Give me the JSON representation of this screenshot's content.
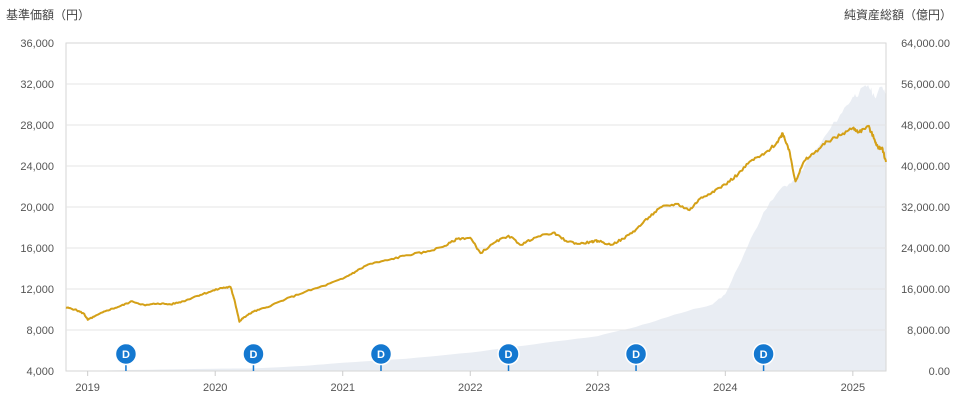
{
  "chart_data": {
    "type": "line",
    "left_axis_title": "基準価額（円）",
    "right_axis_title": "純資産総額（億円）",
    "left_ticks": [
      "4,000",
      "8,000",
      "12,000",
      "16,000",
      "20,000",
      "24,000",
      "28,000",
      "32,000",
      "36,000"
    ],
    "left_ylim": [
      4000,
      36000
    ],
    "right_ticks": [
      "0.00",
      "8,000.00",
      "16,000.00",
      "24,000.00",
      "32,000.00",
      "40,000.00",
      "48,000.00",
      "56,000.00",
      "64,000.00"
    ],
    "right_ylim": [
      0,
      64000
    ],
    "x_ticks": [
      "2019",
      "2020",
      "2021",
      "2022",
      "2023",
      "2024",
      "2025"
    ],
    "xlim": [
      2018.83,
      2025.26
    ],
    "grid": true,
    "series": [
      {
        "role": "nav",
        "color": "#d4a017",
        "axis": "left",
        "points": [
          [
            2018.83,
            10200
          ],
          [
            2018.9,
            10000
          ],
          [
            2018.97,
            9600
          ],
          [
            2019.0,
            9000
          ],
          [
            2019.05,
            9300
          ],
          [
            2019.15,
            9900
          ],
          [
            2019.25,
            10300
          ],
          [
            2019.35,
            10800
          ],
          [
            2019.45,
            10400
          ],
          [
            2019.55,
            10600
          ],
          [
            2019.65,
            10500
          ],
          [
            2019.75,
            10800
          ],
          [
            2019.85,
            11300
          ],
          [
            2019.95,
            11700
          ],
          [
            2020.05,
            12100
          ],
          [
            2020.12,
            12200
          ],
          [
            2020.15,
            11000
          ],
          [
            2020.19,
            8800
          ],
          [
            2020.22,
            9200
          ],
          [
            2020.3,
            9800
          ],
          [
            2020.4,
            10200
          ],
          [
            2020.55,
            11000
          ],
          [
            2020.7,
            11700
          ],
          [
            2020.85,
            12300
          ],
          [
            2021.0,
            13000
          ],
          [
            2021.1,
            13700
          ],
          [
            2021.2,
            14400
          ],
          [
            2021.35,
            14800
          ],
          [
            2021.5,
            15300
          ],
          [
            2021.65,
            15600
          ],
          [
            2021.8,
            16200
          ],
          [
            2021.9,
            16900
          ],
          [
            2022.0,
            17000
          ],
          [
            2022.08,
            15500
          ],
          [
            2022.2,
            16600
          ],
          [
            2022.3,
            17200
          ],
          [
            2022.4,
            16300
          ],
          [
            2022.5,
            17000
          ],
          [
            2022.65,
            17500
          ],
          [
            2022.75,
            16700
          ],
          [
            2022.85,
            16400
          ],
          [
            2022.95,
            16600
          ],
          [
            2023.0,
            16700
          ],
          [
            2023.1,
            16300
          ],
          [
            2023.2,
            16900
          ],
          [
            2023.3,
            17800
          ],
          [
            2023.4,
            19000
          ],
          [
            2023.5,
            20000
          ],
          [
            2023.62,
            20300
          ],
          [
            2023.72,
            19700
          ],
          [
            2023.8,
            20800
          ],
          [
            2023.9,
            21500
          ],
          [
            2024.0,
            22200
          ],
          [
            2024.1,
            23200
          ],
          [
            2024.2,
            24500
          ],
          [
            2024.3,
            25100
          ],
          [
            2024.4,
            26200
          ],
          [
            2024.45,
            27200
          ],
          [
            2024.5,
            25600
          ],
          [
            2024.55,
            22500
          ],
          [
            2024.62,
            24500
          ],
          [
            2024.7,
            25300
          ],
          [
            2024.8,
            26400
          ],
          [
            2024.9,
            27000
          ],
          [
            2025.0,
            27700
          ],
          [
            2025.05,
            27300
          ],
          [
            2025.12,
            27900
          ],
          [
            2025.17,
            26600
          ],
          [
            2025.2,
            25700
          ],
          [
            2025.23,
            25800
          ],
          [
            2025.26,
            24400
          ]
        ]
      },
      {
        "role": "total_net_assets",
        "color": "#e9edf3",
        "axis": "right",
        "points": [
          [
            2018.83,
            0
          ],
          [
            2019.5,
            250
          ],
          [
            2020.0,
            450
          ],
          [
            2020.3,
            500
          ],
          [
            2020.7,
            1000
          ],
          [
            2021.0,
            1600
          ],
          [
            2021.5,
            2400
          ],
          [
            2022.0,
            3600
          ],
          [
            2022.5,
            5200
          ],
          [
            2023.0,
            6800
          ],
          [
            2023.3,
            8600
          ],
          [
            2023.6,
            11000
          ],
          [
            2023.9,
            13000
          ],
          [
            2024.0,
            15000
          ],
          [
            2024.15,
            23000
          ],
          [
            2024.3,
            31000
          ],
          [
            2024.45,
            36000
          ],
          [
            2024.55,
            37000
          ],
          [
            2024.62,
            40000
          ],
          [
            2024.75,
            44500
          ],
          [
            2024.9,
            50000
          ],
          [
            2025.0,
            53500
          ],
          [
            2025.05,
            54300
          ],
          [
            2025.12,
            55800
          ],
          [
            2025.17,
            53500
          ],
          [
            2025.23,
            55500
          ],
          [
            2025.26,
            54500
          ]
        ]
      }
    ],
    "dividend_markers": {
      "label": "D",
      "color": "#1478d0",
      "x": [
        2019.3,
        2020.3,
        2021.3,
        2022.3,
        2023.3,
        2024.3
      ]
    }
  }
}
